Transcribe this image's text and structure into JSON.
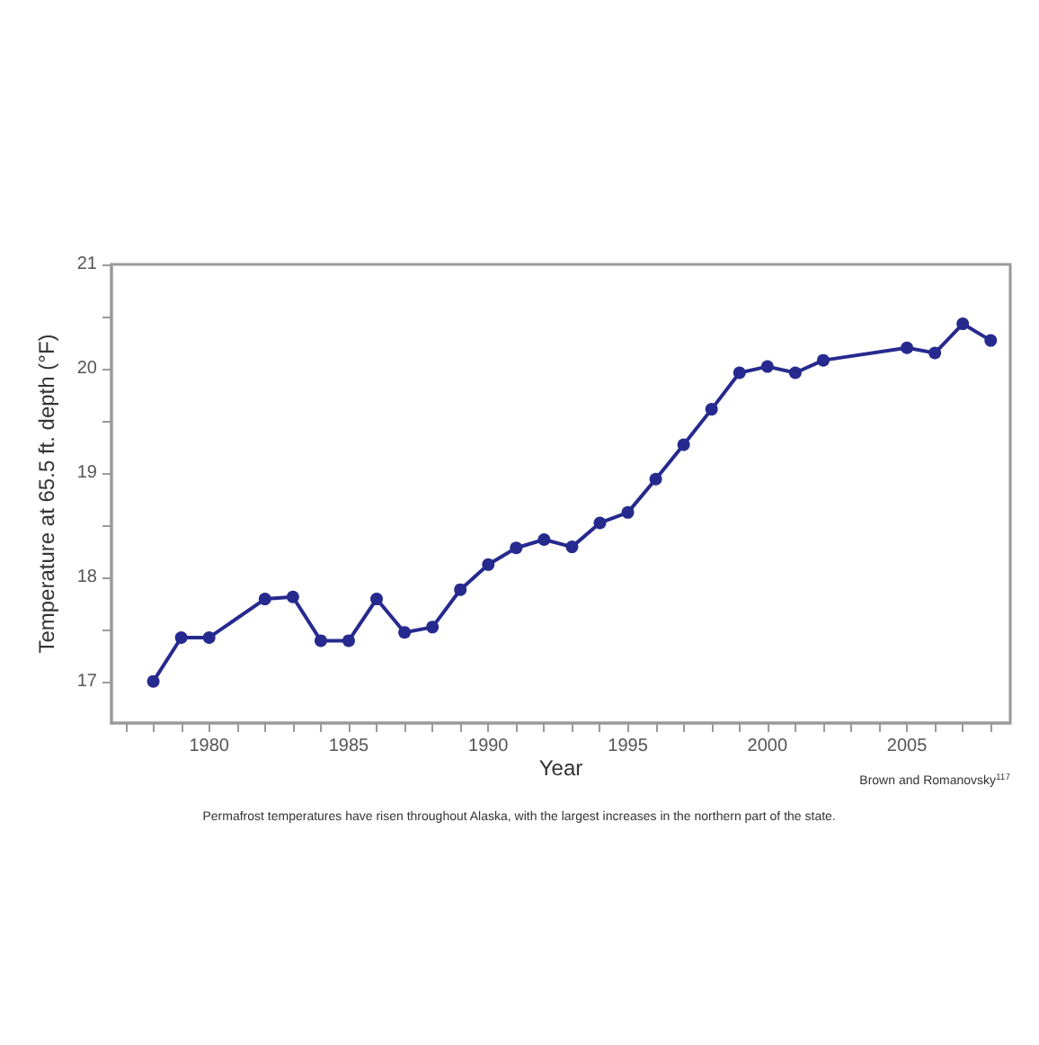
{
  "chart_data": {
    "type": "line",
    "xlabel": "Year",
    "ylabel": "Temperature at 65.5 ft. depth (°F)",
    "annotations": [
      "Brown and Romanovsky$^{117}$",
      "Permafrost temperatures have risen throughout Alaska, with the largest increases in the northern part of the state."
    ],
    "x": [
      1978,
      1979,
      1980,
      1982,
      1983,
      1984,
      1985,
      1986,
      1987,
      1988,
      1989,
      1990,
      1991,
      1992,
      1993,
      1994,
      1995,
      1996,
      1997,
      1998,
      1999,
      2000,
      2001,
      2002,
      2005,
      2006,
      2007,
      2008
    ],
    "series": [
      {
        "color": "#262a8e",
        "values": [
          17.0,
          17.42,
          17.42,
          17.79,
          17.81,
          17.39,
          17.39,
          17.79,
          17.47,
          17.52,
          17.88,
          18.12,
          18.28,
          18.36,
          18.29,
          18.52,
          18.62,
          18.94,
          19.27,
          19.61,
          19.96,
          20.02,
          19.96,
          20.08,
          20.2,
          20.15,
          20.43,
          20.27
        ]
      }
    ],
    "xlim": [
      1976.5,
      2008.7
    ],
    "ylim": [
      16.6,
      21
    ],
    "xticks": [
      {
        "value": 1977,
        "label": null
      },
      {
        "value": 1978,
        "label": null
      },
      {
        "value": 1979,
        "label": null
      },
      1980,
      {
        "value": 1981,
        "label": null
      },
      {
        "value": 1982,
        "label": null
      },
      {
        "value": 1983,
        "label": null
      },
      {
        "value": 1984,
        "label": null
      },
      1985,
      {
        "value": 1986,
        "label": null
      },
      {
        "value": 1987,
        "label": null
      },
      {
        "value": 1988,
        "label": null
      },
      {
        "value": 1989,
        "label": null
      },
      1990,
      {
        "value": 1991,
        "label": null
      },
      {
        "value": 1992,
        "label": null
      },
      {
        "value": 1993,
        "label": null
      },
      {
        "value": 1994,
        "label": null
      },
      1995,
      {
        "value": 1996,
        "label": null
      },
      {
        "value": 1997,
        "label": null
      },
      {
        "value": 1998,
        "label": null
      },
      {
        "value": 1999,
        "label": null
      },
      2000,
      {
        "value": 2001,
        "label": null
      },
      {
        "value": 2002,
        "label": null
      },
      {
        "value": 2003,
        "label": null
      },
      {
        "value": 2004,
        "label": null
      },
      2005,
      {
        "value": 2006,
        "label": null
      },
      {
        "value": 2007,
        "label": null
      },
      {
        "value": 2008,
        "label": null
      }
    ],
    "yticks": [
      17,
      {
        "value": 17.5,
        "label": null
      },
      18,
      {
        "value": 18.5,
        "label": null
      },
      19,
      {
        "value": 19.5,
        "label": null
      },
      20,
      {
        "value": 20.5,
        "label": null
      },
      21
    ],
    "marker": "circle",
    "line_style": "solid"
  }
}
